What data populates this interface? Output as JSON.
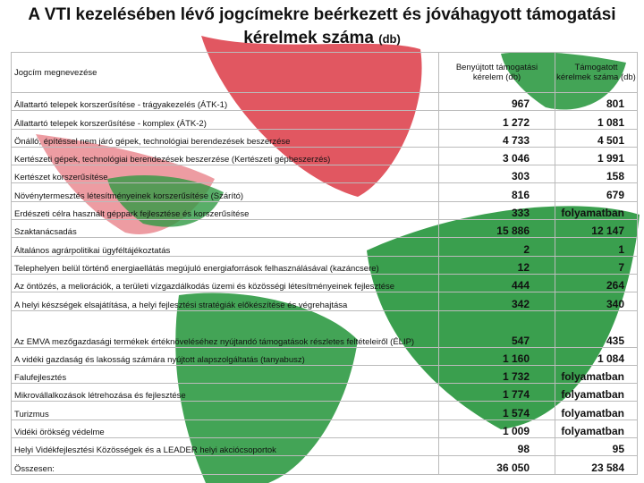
{
  "header": {
    "title": "A VTI kezelésében lévő jogcímekre beérkezett  és jóváhagyott támogatási kérelmek száma",
    "title_unit": "(db)"
  },
  "table": {
    "columns": [
      "Jogcím megnevezése",
      "Benyújtott támogatási kérelem (db)",
      "Támogatott kérelmek száma (db)"
    ],
    "rows": [
      [
        "Állattartó telepek korszerűsítése - trágyakezelés (ÁTK-1)",
        "967",
        "801"
      ],
      [
        "Állattartó telepek korszerűsítése - komplex (ÁTK-2)",
        "1 272",
        "1 081"
      ],
      [
        "Önálló, építéssel nem járó gépek, technológiai berendezések beszerzése",
        "4 733",
        "4 501"
      ],
      [
        "Kertészeti gépek, technológiai berendezések beszerzése (Kertészeti gépbeszerzés)",
        "3 046",
        "1 991"
      ],
      [
        "Kertészet korszerűsítése",
        "303",
        "158"
      ],
      [
        "Növénytermesztés létesítményeinek korszerűsítése (Szárító)",
        "816",
        "679"
      ],
      [
        "Erdészeti célra használt géppark fejlesztése és korszerűsítése",
        "333",
        "folyamatban"
      ],
      [
        "Szaktanácsadás",
        "15 886",
        "12 147"
      ],
      [
        "Általános agrárpolitikai ügyféltájékoztatás",
        "2",
        "1"
      ],
      [
        "Telephelyen belül történő energiaellátás megújuló energiaforrások felhasználásával (kazáncsere)",
        "12",
        "7"
      ],
      [
        "Az öntözés, a meliorációk, a területi vízgazdálkodás üzemi és közösségi létesítményeinek fejlesztése",
        "444",
        "264"
      ],
      [
        "A helyi készségek elsajátítása, a helyi fejlesztési stratégiák előkészítése és végrehajtása",
        "342",
        "340"
      ],
      [
        "Az EMVA mezőgazdasági termékek értéknöveléséhez nyújtandó támogatások részletes feltételeiről (ÉLIP)",
        "547",
        "435"
      ],
      [
        "A vidéki gazdaság és lakosság számára nyújtott alapszolgáltatás (tanyabusz)",
        "1 160",
        "1 084"
      ],
      [
        "Falufejlesztés",
        "1 732",
        "folyamatban"
      ],
      [
        "Mikrovállalkozások létrehozása és fejlesztése",
        "1 774",
        "folyamatban"
      ],
      [
        "Turizmus",
        "1 574",
        "folyamatban"
      ],
      [
        "Vidéki örökség védelme",
        "1 009",
        "folyamatban"
      ],
      [
        "Helyi Vidékfejlesztési Közösségek és a LEADER helyi akciócsoportok",
        "98",
        "95"
      ],
      [
        "Összesen:",
        "36 050",
        "23 584"
      ]
    ]
  }
}
